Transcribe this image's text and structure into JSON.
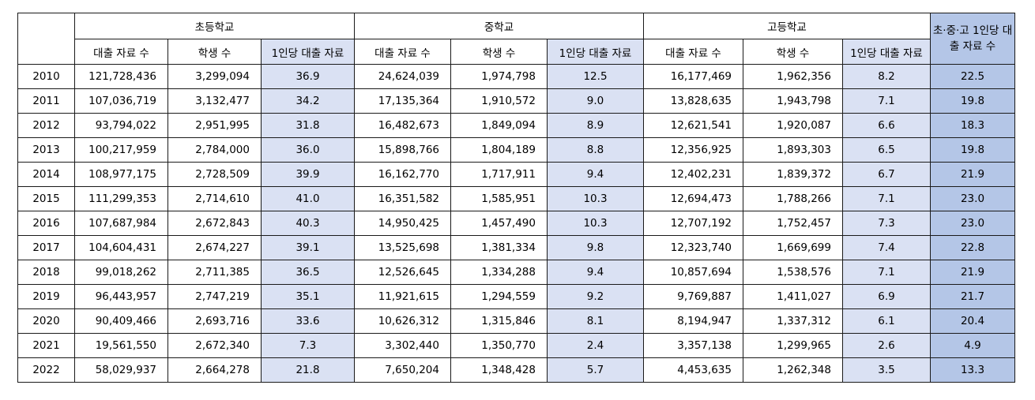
{
  "groups": [
    "초등학교",
    "중학교",
    "고등학교"
  ],
  "total_header": "초·중·고 1인당 대출 자료 수",
  "subheaders": [
    "대출 자료 수",
    "학생 수",
    "1인당 대출 자료"
  ],
  "rows": [
    {
      "year": "2010",
      "e_loans": "121,728,436",
      "e_students": "3,299,094",
      "e_per": "36.9",
      "m_loans": "24,624,039",
      "m_students": "1,974,798",
      "m_per": "12.5",
      "h_loans": "16,177,469",
      "h_students": "1,962,356",
      "h_per": "8.2",
      "total": "22.5"
    },
    {
      "year": "2011",
      "e_loans": "107,036,719",
      "e_students": "3,132,477",
      "e_per": "34.2",
      "m_loans": "17,135,364",
      "m_students": "1,910,572",
      "m_per": "9.0",
      "h_loans": "13,828,635",
      "h_students": "1,943,798",
      "h_per": "7.1",
      "total": "19.8"
    },
    {
      "year": "2012",
      "e_loans": "93,794,022",
      "e_students": "2,951,995",
      "e_per": "31.8",
      "m_loans": "16,482,673",
      "m_students": "1,849,094",
      "m_per": "8.9",
      "h_loans": "12,621,541",
      "h_students": "1,920,087",
      "h_per": "6.6",
      "total": "18.3"
    },
    {
      "year": "2013",
      "e_loans": "100,217,959",
      "e_students": "2,784,000",
      "e_per": "36.0",
      "m_loans": "15,898,766",
      "m_students": "1,804,189",
      "m_per": "8.8",
      "h_loans": "12,356,925",
      "h_students": "1,893,303",
      "h_per": "6.5",
      "total": "19.8"
    },
    {
      "year": "2014",
      "e_loans": "108,977,175",
      "e_students": "2,728,509",
      "e_per": "39.9",
      "m_loans": "16,162,770",
      "m_students": "1,717,911",
      "m_per": "9.4",
      "h_loans": "12,402,231",
      "h_students": "1,839,372",
      "h_per": "6.7",
      "total": "21.9"
    },
    {
      "year": "2015",
      "e_loans": "111,299,353",
      "e_students": "2,714,610",
      "e_per": "41.0",
      "m_loans": "16,351,582",
      "m_students": "1,585,951",
      "m_per": "10.3",
      "h_loans": "12,694,473",
      "h_students": "1,788,266",
      "h_per": "7.1",
      "total": "23.0"
    },
    {
      "year": "2016",
      "e_loans": "107,687,984",
      "e_students": "2,672,843",
      "e_per": "40.3",
      "m_loans": "14,950,425",
      "m_students": "1,457,490",
      "m_per": "10.3",
      "h_loans": "12,707,192",
      "h_students": "1,752,457",
      "h_per": "7.3",
      "total": "23.0"
    },
    {
      "year": "2017",
      "e_loans": "104,604,431",
      "e_students": "2,674,227",
      "e_per": "39.1",
      "m_loans": "13,525,698",
      "m_students": "1,381,334",
      "m_per": "9.8",
      "h_loans": "12,323,740",
      "h_students": "1,669,699",
      "h_per": "7.4",
      "total": "22.8"
    },
    {
      "year": "2018",
      "e_loans": "99,018,262",
      "e_students": "2,711,385",
      "e_per": "36.5",
      "m_loans": "12,526,645",
      "m_students": "1,334,288",
      "m_per": "9.4",
      "h_loans": "10,857,694",
      "h_students": "1,538,576",
      "h_per": "7.1",
      "total": "21.9"
    },
    {
      "year": "2019",
      "e_loans": "96,443,957",
      "e_students": "2,747,219",
      "e_per": "35.1",
      "m_loans": "11,921,615",
      "m_students": "1,294,559",
      "m_per": "9.2",
      "h_loans": "9,769,887",
      "h_students": "1,411,027",
      "h_per": "6.9",
      "total": "21.7"
    },
    {
      "year": "2020",
      "e_loans": "90,409,466",
      "e_students": "2,693,716",
      "e_per": "33.6",
      "m_loans": "10,626,312",
      "m_students": "1,315,846",
      "m_per": "8.1",
      "h_loans": "8,194,947",
      "h_students": "1,337,312",
      "h_per": "6.1",
      "total": "20.4"
    },
    {
      "year": "2021",
      "e_loans": "19,561,550",
      "e_students": "2,672,340",
      "e_per": "7.3",
      "m_loans": "3,302,440",
      "m_students": "1,350,770",
      "m_per": "2.4",
      "h_loans": "3,357,138",
      "h_students": "1,299,965",
      "h_per": "2.6",
      "total": "4.9"
    },
    {
      "year": "2022",
      "e_loans": "58,029,937",
      "e_students": "2,664,278",
      "e_per": "21.8",
      "m_loans": "7,650,204",
      "m_students": "1,348,428",
      "m_per": "5.7",
      "h_loans": "4,453,635",
      "h_students": "1,262,348",
      "h_per": "3.5",
      "total": "13.3"
    }
  ],
  "colors": {
    "per_capita_fill": "#dae1f3",
    "total_fill": "#b4c6e7"
  }
}
